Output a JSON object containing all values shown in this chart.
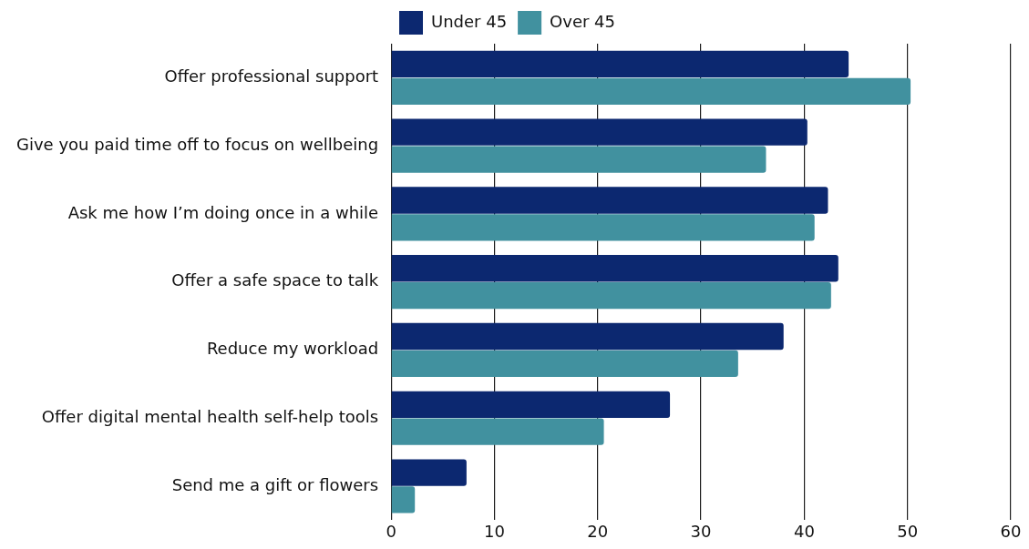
{
  "chart_data": {
    "type": "bar",
    "orientation": "horizontal",
    "categories": [
      "Offer professional support",
      "Give you paid time off to focus on wellbeing",
      "Ask me how I’m doing once in a while",
      "Offer a safe space to talk",
      "Reduce my workload",
      "Offer digital mental health self-help tools",
      "Send me a gift or flowers"
    ],
    "series": [
      {
        "name": "Under 45",
        "color": "#0c2870",
        "values": [
          44.3,
          40.3,
          42.3,
          43.3,
          38.0,
          27.0,
          7.3
        ]
      },
      {
        "name": "Over 45",
        "color": "#41919f",
        "values": [
          50.3,
          36.3,
          41.0,
          42.6,
          33.6,
          20.6,
          2.3
        ]
      }
    ],
    "xlim": [
      0,
      60
    ],
    "xticks": [
      0,
      10,
      20,
      30,
      40,
      50,
      60
    ],
    "grid": "x",
    "legend": "top"
  }
}
